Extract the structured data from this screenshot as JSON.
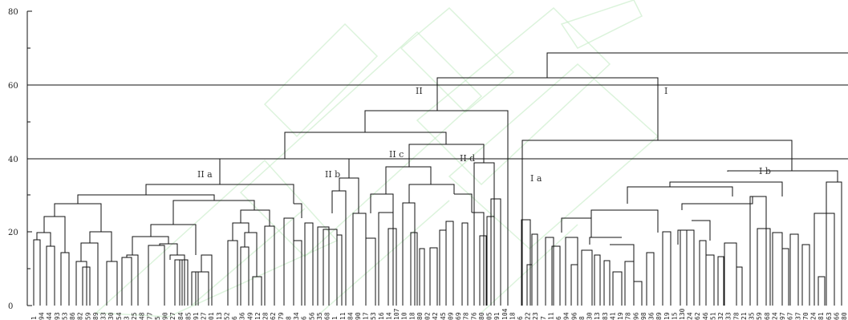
{
  "axis": {
    "ticks": [
      "0",
      "20",
      "40",
      "60",
      "80"
    ]
  },
  "groups": {
    "I": "I",
    "II": "II",
    "Ia": "I a",
    "Ib": "I b",
    "IIa": "II a",
    "IIb": "II b",
    "IIc": "II c",
    "IId": "II d"
  },
  "leaves": [
    "1",
    "94",
    "44",
    "93",
    "53",
    "86",
    "82",
    "59",
    "89",
    "33",
    "30",
    "54",
    "3",
    "25",
    "48",
    "77",
    "5",
    "90",
    "27",
    "84",
    "85",
    "91",
    "27",
    "01",
    "13",
    "52",
    "6",
    "36",
    "49",
    "12",
    "28",
    "62",
    "79",
    "8",
    "34",
    "6",
    "56",
    "35",
    "68",
    "1",
    "11",
    "84",
    "90",
    "17",
    "53",
    "16",
    "14",
    "107",
    "10",
    "18",
    "80",
    "02",
    "42",
    "45",
    "09",
    "69",
    "78",
    "76",
    "80",
    "05",
    "91",
    "104",
    "18",
    "6",
    "22",
    "23",
    "7",
    "11",
    "6",
    "94",
    "96",
    "8",
    "30",
    "13",
    "83",
    "41",
    "19",
    "78",
    "96",
    "98",
    "36",
    "89",
    "19",
    "15",
    "130",
    "24",
    "62",
    "46",
    "51",
    "32",
    "33",
    "78",
    "21",
    "35",
    "59",
    "68",
    "24",
    "97",
    "67",
    "37",
    "70",
    "24",
    "81",
    "63",
    "66",
    "80"
  ],
  "colors": {
    "line": "#111111",
    "watermark": "#bfeabf"
  }
}
